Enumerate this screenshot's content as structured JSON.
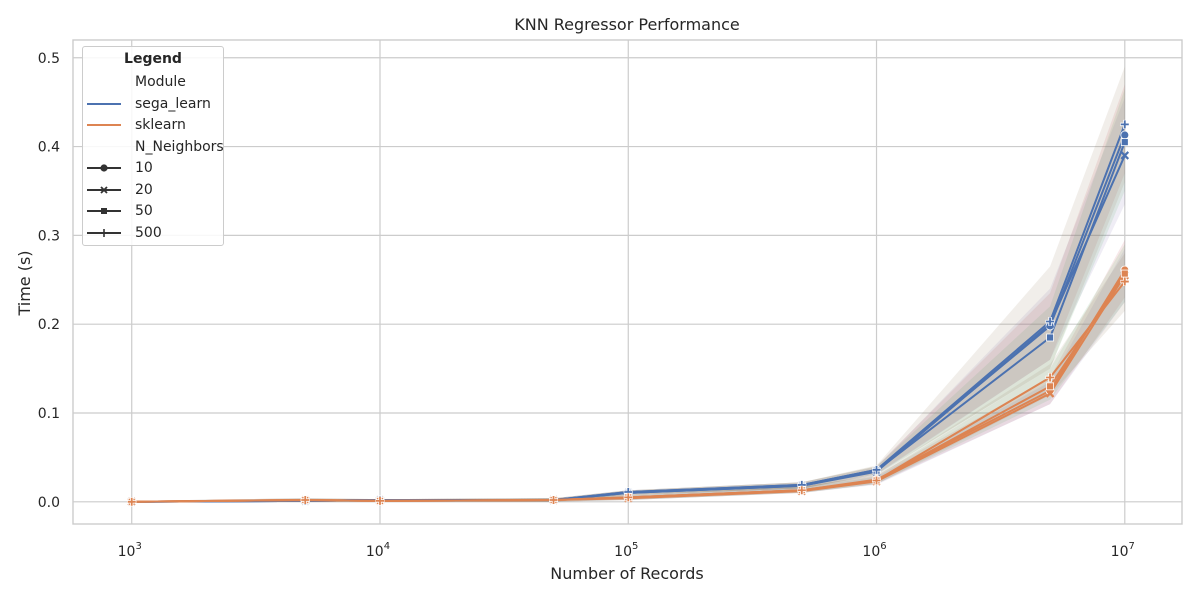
{
  "chart_data": {
    "type": "line",
    "title": "KNN Regressor Performance",
    "xlabel": "Number of Records",
    "ylabel": "Time (s)",
    "xscale": "log",
    "xlim": [
      580,
      17000000
    ],
    "ylim": [
      -0.025,
      0.52
    ],
    "x_ticks": [
      1000,
      10000,
      100000,
      1000000,
      10000000
    ],
    "x_tick_labels": [
      {
        "base": "10",
        "exp": "3"
      },
      {
        "base": "10",
        "exp": "4"
      },
      {
        "base": "10",
        "exp": "5"
      },
      {
        "base": "10",
        "exp": "6"
      },
      {
        "base": "10",
        "exp": "7"
      }
    ],
    "y_ticks": [
      0.0,
      0.1,
      0.2,
      0.3,
      0.4,
      0.5
    ],
    "y_tick_labels": [
      "0.0",
      "0.1",
      "0.2",
      "0.3",
      "0.4",
      "0.5"
    ],
    "grid": true,
    "legend_placement": "top-left",
    "x": [
      1000,
      5000,
      10000,
      50000,
      100000,
      500000,
      1000000,
      5000000,
      10000000
    ],
    "series": [
      {
        "name": "sega_learn",
        "module": "sega_learn",
        "n_neighbors": "10",
        "marker": "circle",
        "color": "#4c72b0",
        "values": [
          0.0,
          0.001,
          0.002,
          0.002,
          0.011,
          0.019,
          0.036,
          0.198,
          0.413
        ],
        "ci_low": [
          0.0,
          0.0,
          0.0,
          0.0,
          0.008,
          0.015,
          0.031,
          0.16,
          0.37
        ],
        "ci_high": [
          0.001,
          0.003,
          0.003,
          0.004,
          0.013,
          0.022,
          0.04,
          0.235,
          0.47
        ]
      },
      {
        "name": "sega_learn",
        "module": "sega_learn",
        "n_neighbors": "20",
        "marker": "x",
        "color": "#4c72b0",
        "values": [
          0.0,
          0.001,
          0.002,
          0.002,
          0.01,
          0.018,
          0.034,
          0.2,
          0.39
        ],
        "ci_low": [
          0.0,
          0.0,
          0.0,
          0.0,
          0.008,
          0.015,
          0.03,
          0.16,
          0.335
        ],
        "ci_high": [
          0.001,
          0.003,
          0.003,
          0.004,
          0.013,
          0.022,
          0.039,
          0.24,
          0.455
        ]
      },
      {
        "name": "sega_learn",
        "module": "sega_learn",
        "n_neighbors": "50",
        "marker": "square",
        "color": "#4c72b0",
        "values": [
          0.0,
          0.001,
          0.002,
          0.002,
          0.01,
          0.018,
          0.035,
          0.185,
          0.405
        ],
        "ci_low": [
          0.0,
          0.0,
          0.0,
          0.0,
          0.008,
          0.015,
          0.03,
          0.15,
          0.35
        ],
        "ci_high": [
          0.001,
          0.003,
          0.003,
          0.004,
          0.013,
          0.022,
          0.04,
          0.22,
          0.465
        ]
      },
      {
        "name": "sega_learn",
        "module": "sega_learn",
        "n_neighbors": "500",
        "marker": "plus",
        "color": "#4c72b0",
        "values": [
          0.0,
          0.001,
          0.002,
          0.002,
          0.011,
          0.019,
          0.036,
          0.203,
          0.425
        ],
        "ci_low": [
          0.0,
          0.0,
          0.0,
          0.0,
          0.008,
          0.015,
          0.031,
          0.15,
          0.36
        ],
        "ci_high": [
          0.001,
          0.003,
          0.003,
          0.004,
          0.013,
          0.022,
          0.041,
          0.265,
          0.49
        ]
      },
      {
        "name": "sklearn",
        "module": "sklearn",
        "n_neighbors": "10",
        "marker": "circle",
        "color": "#dd8452",
        "values": [
          0.0,
          0.002,
          0.001,
          0.002,
          0.005,
          0.013,
          0.025,
          0.125,
          0.261
        ],
        "ci_low": [
          0.0,
          0.0,
          0.0,
          0.0,
          0.002,
          0.01,
          0.02,
          0.11,
          0.23
        ],
        "ci_high": [
          0.001,
          0.004,
          0.003,
          0.004,
          0.008,
          0.017,
          0.03,
          0.14,
          0.295
        ]
      },
      {
        "name": "sklearn",
        "module": "sklearn",
        "n_neighbors": "20",
        "marker": "x",
        "color": "#dd8452",
        "values": [
          0.0,
          0.002,
          0.001,
          0.002,
          0.004,
          0.012,
          0.023,
          0.122,
          0.255
        ],
        "ci_low": [
          0.0,
          0.0,
          0.0,
          0.0,
          0.002,
          0.01,
          0.019,
          0.11,
          0.225
        ],
        "ci_high": [
          0.001,
          0.004,
          0.003,
          0.004,
          0.007,
          0.016,
          0.028,
          0.135,
          0.285
        ]
      },
      {
        "name": "sklearn",
        "module": "sklearn",
        "n_neighbors": "50",
        "marker": "square",
        "color": "#dd8452",
        "values": [
          0.0,
          0.002,
          0.001,
          0.002,
          0.005,
          0.013,
          0.024,
          0.13,
          0.257
        ],
        "ci_low": [
          0.0,
          0.0,
          0.0,
          0.0,
          0.002,
          0.01,
          0.02,
          0.115,
          0.225
        ],
        "ci_high": [
          0.001,
          0.004,
          0.003,
          0.004,
          0.008,
          0.017,
          0.029,
          0.15,
          0.29
        ]
      },
      {
        "name": "sklearn",
        "module": "sklearn",
        "n_neighbors": "500",
        "marker": "plus",
        "color": "#dd8452",
        "values": [
          0.0,
          0.002,
          0.001,
          0.002,
          0.005,
          0.013,
          0.024,
          0.14,
          0.248
        ],
        "ci_low": [
          0.0,
          0.0,
          0.0,
          0.0,
          0.002,
          0.01,
          0.02,
          0.12,
          0.215
        ],
        "ci_high": [
          0.001,
          0.004,
          0.003,
          0.004,
          0.008,
          0.017,
          0.03,
          0.155,
          0.28
        ]
      }
    ],
    "band_colors": [
      "#c44e52",
      "#8172b3",
      "#55a868",
      "#937860"
    ]
  },
  "legend": {
    "title": "Legend",
    "section_module": "Module",
    "module_items": [
      {
        "label": "sega_learn",
        "color": "#4c72b0"
      },
      {
        "label": "sklearn",
        "color": "#dd8452"
      }
    ],
    "section_neighbors": "N_Neighbors",
    "neighbor_items": [
      {
        "label": "10",
        "marker": "circle"
      },
      {
        "label": "20",
        "marker": "x"
      },
      {
        "label": "50",
        "marker": "square"
      },
      {
        "label": "500",
        "marker": "plus"
      }
    ],
    "marker_color": "#333333"
  }
}
